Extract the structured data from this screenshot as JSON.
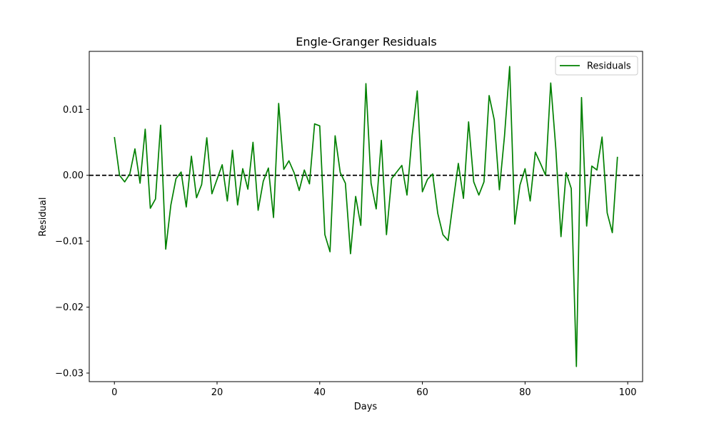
{
  "chart_data": {
    "type": "line",
    "title": "Engle-Granger Residuals",
    "xlabel": "Days",
    "ylabel": "Residual",
    "xlim": [
      -4.9,
      102.9
    ],
    "ylim": [
      -0.0313,
      0.0188
    ],
    "xticks": [
      0,
      20,
      40,
      60,
      80,
      100
    ],
    "xtick_labels": [
      "0",
      "20",
      "40",
      "60",
      "80",
      "100"
    ],
    "yticks": [
      -0.03,
      -0.02,
      -0.01,
      0.0,
      0.01
    ],
    "ytick_labels": [
      "−0.03",
      "−0.02",
      "−0.01",
      "0.00",
      "0.01"
    ],
    "grid": false,
    "legend": {
      "position": "top-right",
      "entries": [
        "Residuals"
      ]
    },
    "reference_line": {
      "y": 0.0,
      "style": "dashed",
      "color": "#000000"
    },
    "series": [
      {
        "name": "Residuals",
        "color": "#008000",
        "x": [
          0,
          1,
          2,
          3,
          4,
          5,
          6,
          7,
          8,
          9,
          10,
          11,
          12,
          13,
          14,
          15,
          16,
          17,
          18,
          19,
          20,
          21,
          22,
          23,
          24,
          25,
          26,
          27,
          28,
          29,
          30,
          31,
          32,
          33,
          34,
          35,
          36,
          37,
          38,
          39,
          40,
          41,
          42,
          43,
          44,
          45,
          46,
          47,
          48,
          49,
          50,
          51,
          52,
          53,
          54,
          55,
          56,
          57,
          58,
          59,
          60,
          61,
          62,
          63,
          64,
          65,
          66,
          67,
          68,
          69,
          70,
          71,
          72,
          73,
          74,
          75,
          76,
          77,
          78,
          79,
          80,
          81,
          82,
          83,
          84,
          85,
          86,
          87,
          88,
          89,
          90,
          91,
          92,
          93,
          94,
          95,
          96,
          97,
          98
        ],
        "values": [
          0.0058,
          0.0,
          -0.001,
          0.0002,
          0.004,
          -0.0012,
          0.007,
          -0.005,
          -0.0036,
          0.0076,
          -0.0112,
          -0.0045,
          -0.0005,
          0.0005,
          -0.0048,
          0.0029,
          -0.0034,
          -0.0014,
          0.0057,
          -0.0028,
          -0.0006,
          0.0016,
          -0.0039,
          0.0038,
          -0.0045,
          0.001,
          -0.0021,
          0.005,
          -0.0053,
          -0.0009,
          0.0011,
          -0.0064,
          0.0109,
          0.0009,
          0.0022,
          0.0004,
          -0.0023,
          0.0008,
          -0.0013,
          0.0078,
          0.0075,
          -0.009,
          -0.0116,
          0.006,
          0.0004,
          -0.0012,
          -0.0119,
          -0.0032,
          -0.0076,
          0.0139,
          -0.0012,
          -0.0051,
          0.0053,
          -0.009,
          -0.0005,
          0.0005,
          0.0015,
          -0.003,
          0.006,
          0.0128,
          -0.0025,
          -0.0006,
          0.0002,
          -0.0058,
          -0.009,
          -0.0099,
          -0.004,
          0.0018,
          -0.0035,
          0.0081,
          -0.001,
          -0.003,
          -0.001,
          0.0121,
          0.0084,
          -0.0022,
          0.006,
          0.0165,
          -0.0074,
          -0.0015,
          0.001,
          -0.0039,
          0.0035,
          0.0018,
          0.0,
          0.014,
          0.004,
          -0.0093,
          0.0004,
          -0.002,
          -0.029,
          0.0118,
          -0.0077,
          0.0014,
          0.0008,
          0.0058,
          -0.0057,
          -0.0087,
          0.0028
        ]
      }
    ]
  }
}
